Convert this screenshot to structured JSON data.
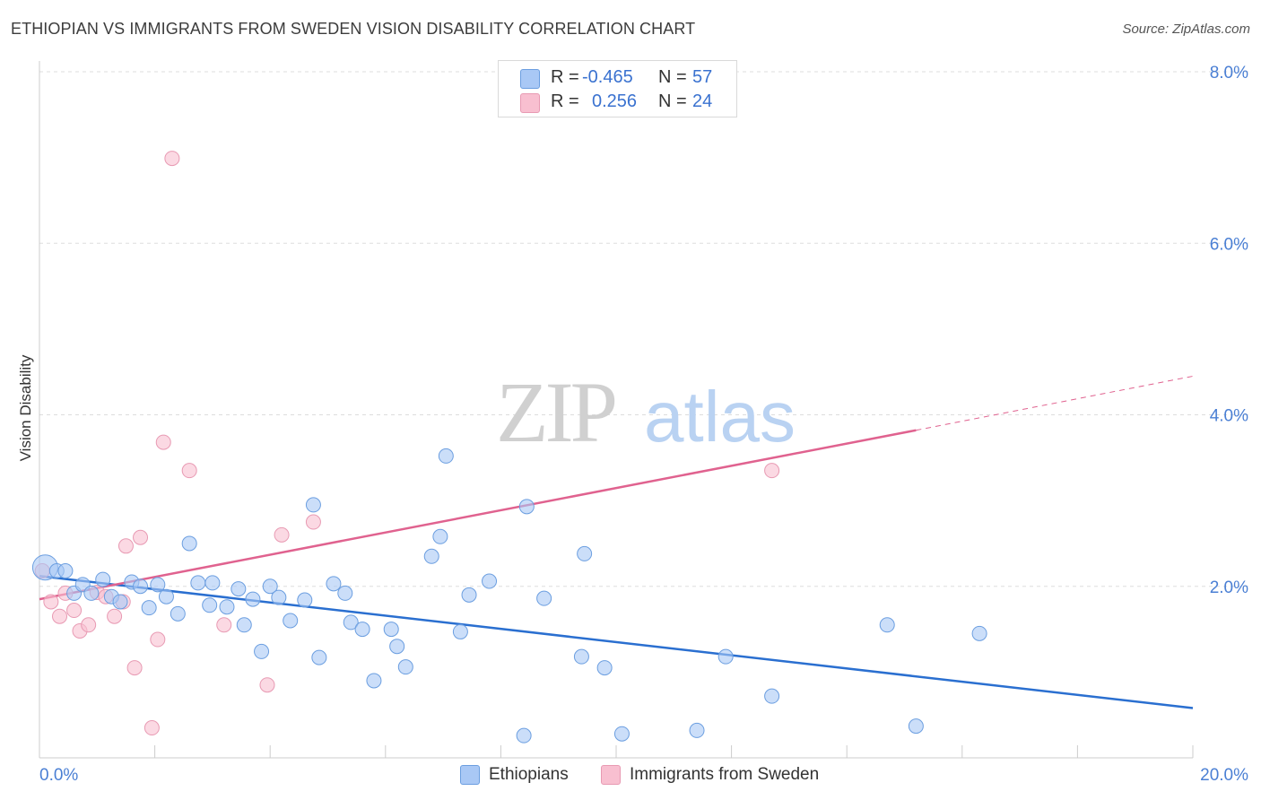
{
  "title": "ETHIOPIAN VS IMMIGRANTS FROM SWEDEN VISION DISABILITY CORRELATION CHART",
  "source": "Source: ZipAtlas.com",
  "watermark": {
    "zip": "ZIP",
    "atlas": "atlas"
  },
  "legend_top": {
    "rows": [
      {
        "r_label": "R =",
        "r_value": "-0.465",
        "n_label": "N =",
        "n_value": "57",
        "color": "#a9c8f5"
      },
      {
        "r_label": "R =",
        "r_value": "0.256",
        "n_label": "N =",
        "n_value": "24",
        "color": "#f8bfd0"
      }
    ]
  },
  "legend_bottom": [
    "Ethiopians",
    "Immigrants from Sweden"
  ],
  "colors": {
    "blue_fill": "#a9c8f5",
    "blue_stroke": "#6b9ee0",
    "blue_line": "#2a6fd0",
    "pink_fill": "#f8bfd0",
    "pink_stroke": "#e89ab3",
    "pink_line": "#e0628f",
    "tick": "#4a7fd4"
  },
  "chart_data": {
    "type": "scatter",
    "title": "ETHIOPIAN VS IMMIGRANTS FROM SWEDEN VISION DISABILITY CORRELATION CHART",
    "xlabel": "",
    "ylabel": "Vision Disability",
    "xlim": [
      0,
      20
    ],
    "ylim": [
      0,
      8.0
    ],
    "x_tick_labels": [
      "0.0%",
      "20.0%"
    ],
    "y_ticks": [
      2,
      4,
      6,
      8
    ],
    "y_tick_labels": [
      "2.0%",
      "4.0%",
      "6.0%",
      "8.0%"
    ],
    "grid": "horizontal dashed",
    "series": [
      {
        "name": "Ethiopians",
        "color": "#a9c8f5",
        "trend": {
          "x": [
            0,
            20
          ],
          "y": [
            2.12,
            0.58
          ]
        },
        "points": [
          [
            0.1,
            2.22
          ],
          [
            0.3,
            2.18
          ],
          [
            0.45,
            2.18
          ],
          [
            0.6,
            1.92
          ],
          [
            0.75,
            2.02
          ],
          [
            0.9,
            1.92
          ],
          [
            1.1,
            2.08
          ],
          [
            1.25,
            1.88
          ],
          [
            1.4,
            1.82
          ],
          [
            1.6,
            2.05
          ],
          [
            1.75,
            2.0
          ],
          [
            1.9,
            1.75
          ],
          [
            2.05,
            2.02
          ],
          [
            2.2,
            1.88
          ],
          [
            2.4,
            1.68
          ],
          [
            2.6,
            2.5
          ],
          [
            2.75,
            2.04
          ],
          [
            2.95,
            1.78
          ],
          [
            3.0,
            2.04
          ],
          [
            3.25,
            1.76
          ],
          [
            3.45,
            1.97
          ],
          [
            3.55,
            1.55
          ],
          [
            3.7,
            1.85
          ],
          [
            3.85,
            1.24
          ],
          [
            4.0,
            2.0
          ],
          [
            4.15,
            1.87
          ],
          [
            4.35,
            1.6
          ],
          [
            4.6,
            1.84
          ],
          [
            4.75,
            2.95
          ],
          [
            4.85,
            1.17
          ],
          [
            5.1,
            2.03
          ],
          [
            5.3,
            1.92
          ],
          [
            5.4,
            1.58
          ],
          [
            5.6,
            1.5
          ],
          [
            5.8,
            0.9
          ],
          [
            6.1,
            1.5
          ],
          [
            6.2,
            1.3
          ],
          [
            6.35,
            1.06
          ],
          [
            6.8,
            2.35
          ],
          [
            6.95,
            2.58
          ],
          [
            7.05,
            3.52
          ],
          [
            7.3,
            1.47
          ],
          [
            7.45,
            1.9
          ],
          [
            7.8,
            2.06
          ],
          [
            8.4,
            0.26
          ],
          [
            8.45,
            2.93
          ],
          [
            8.75,
            1.86
          ],
          [
            9.4,
            1.18
          ],
          [
            9.45,
            2.38
          ],
          [
            9.8,
            1.05
          ],
          [
            10.1,
            0.28
          ],
          [
            11.4,
            0.32
          ],
          [
            11.9,
            1.18
          ],
          [
            12.7,
            0.72
          ],
          [
            14.7,
            1.55
          ],
          [
            15.2,
            0.37
          ],
          [
            16.3,
            1.45
          ]
        ]
      },
      {
        "name": "Immigrants from Sweden",
        "color": "#f8bfd0",
        "trend": {
          "x": [
            0,
            15.2
          ],
          "y": [
            1.85,
            3.82
          ],
          "dashed_to": {
            "x": 20,
            "y": 4.45
          }
        },
        "points": [
          [
            0.05,
            2.18
          ],
          [
            0.2,
            1.82
          ],
          [
            0.35,
            1.65
          ],
          [
            0.45,
            1.92
          ],
          [
            0.6,
            1.72
          ],
          [
            0.7,
            1.48
          ],
          [
            0.85,
            1.55
          ],
          [
            1.0,
            1.93
          ],
          [
            1.15,
            1.88
          ],
          [
            1.3,
            1.65
          ],
          [
            1.45,
            1.82
          ],
          [
            1.5,
            2.47
          ],
          [
            1.65,
            1.05
          ],
          [
            1.75,
            2.57
          ],
          [
            1.95,
            0.35
          ],
          [
            2.05,
            1.38
          ],
          [
            2.15,
            3.68
          ],
          [
            2.3,
            6.99
          ],
          [
            2.6,
            3.35
          ],
          [
            3.2,
            1.55
          ],
          [
            3.95,
            0.85
          ],
          [
            4.2,
            2.6
          ],
          [
            4.75,
            2.75
          ],
          [
            12.7,
            3.35
          ]
        ]
      }
    ]
  }
}
